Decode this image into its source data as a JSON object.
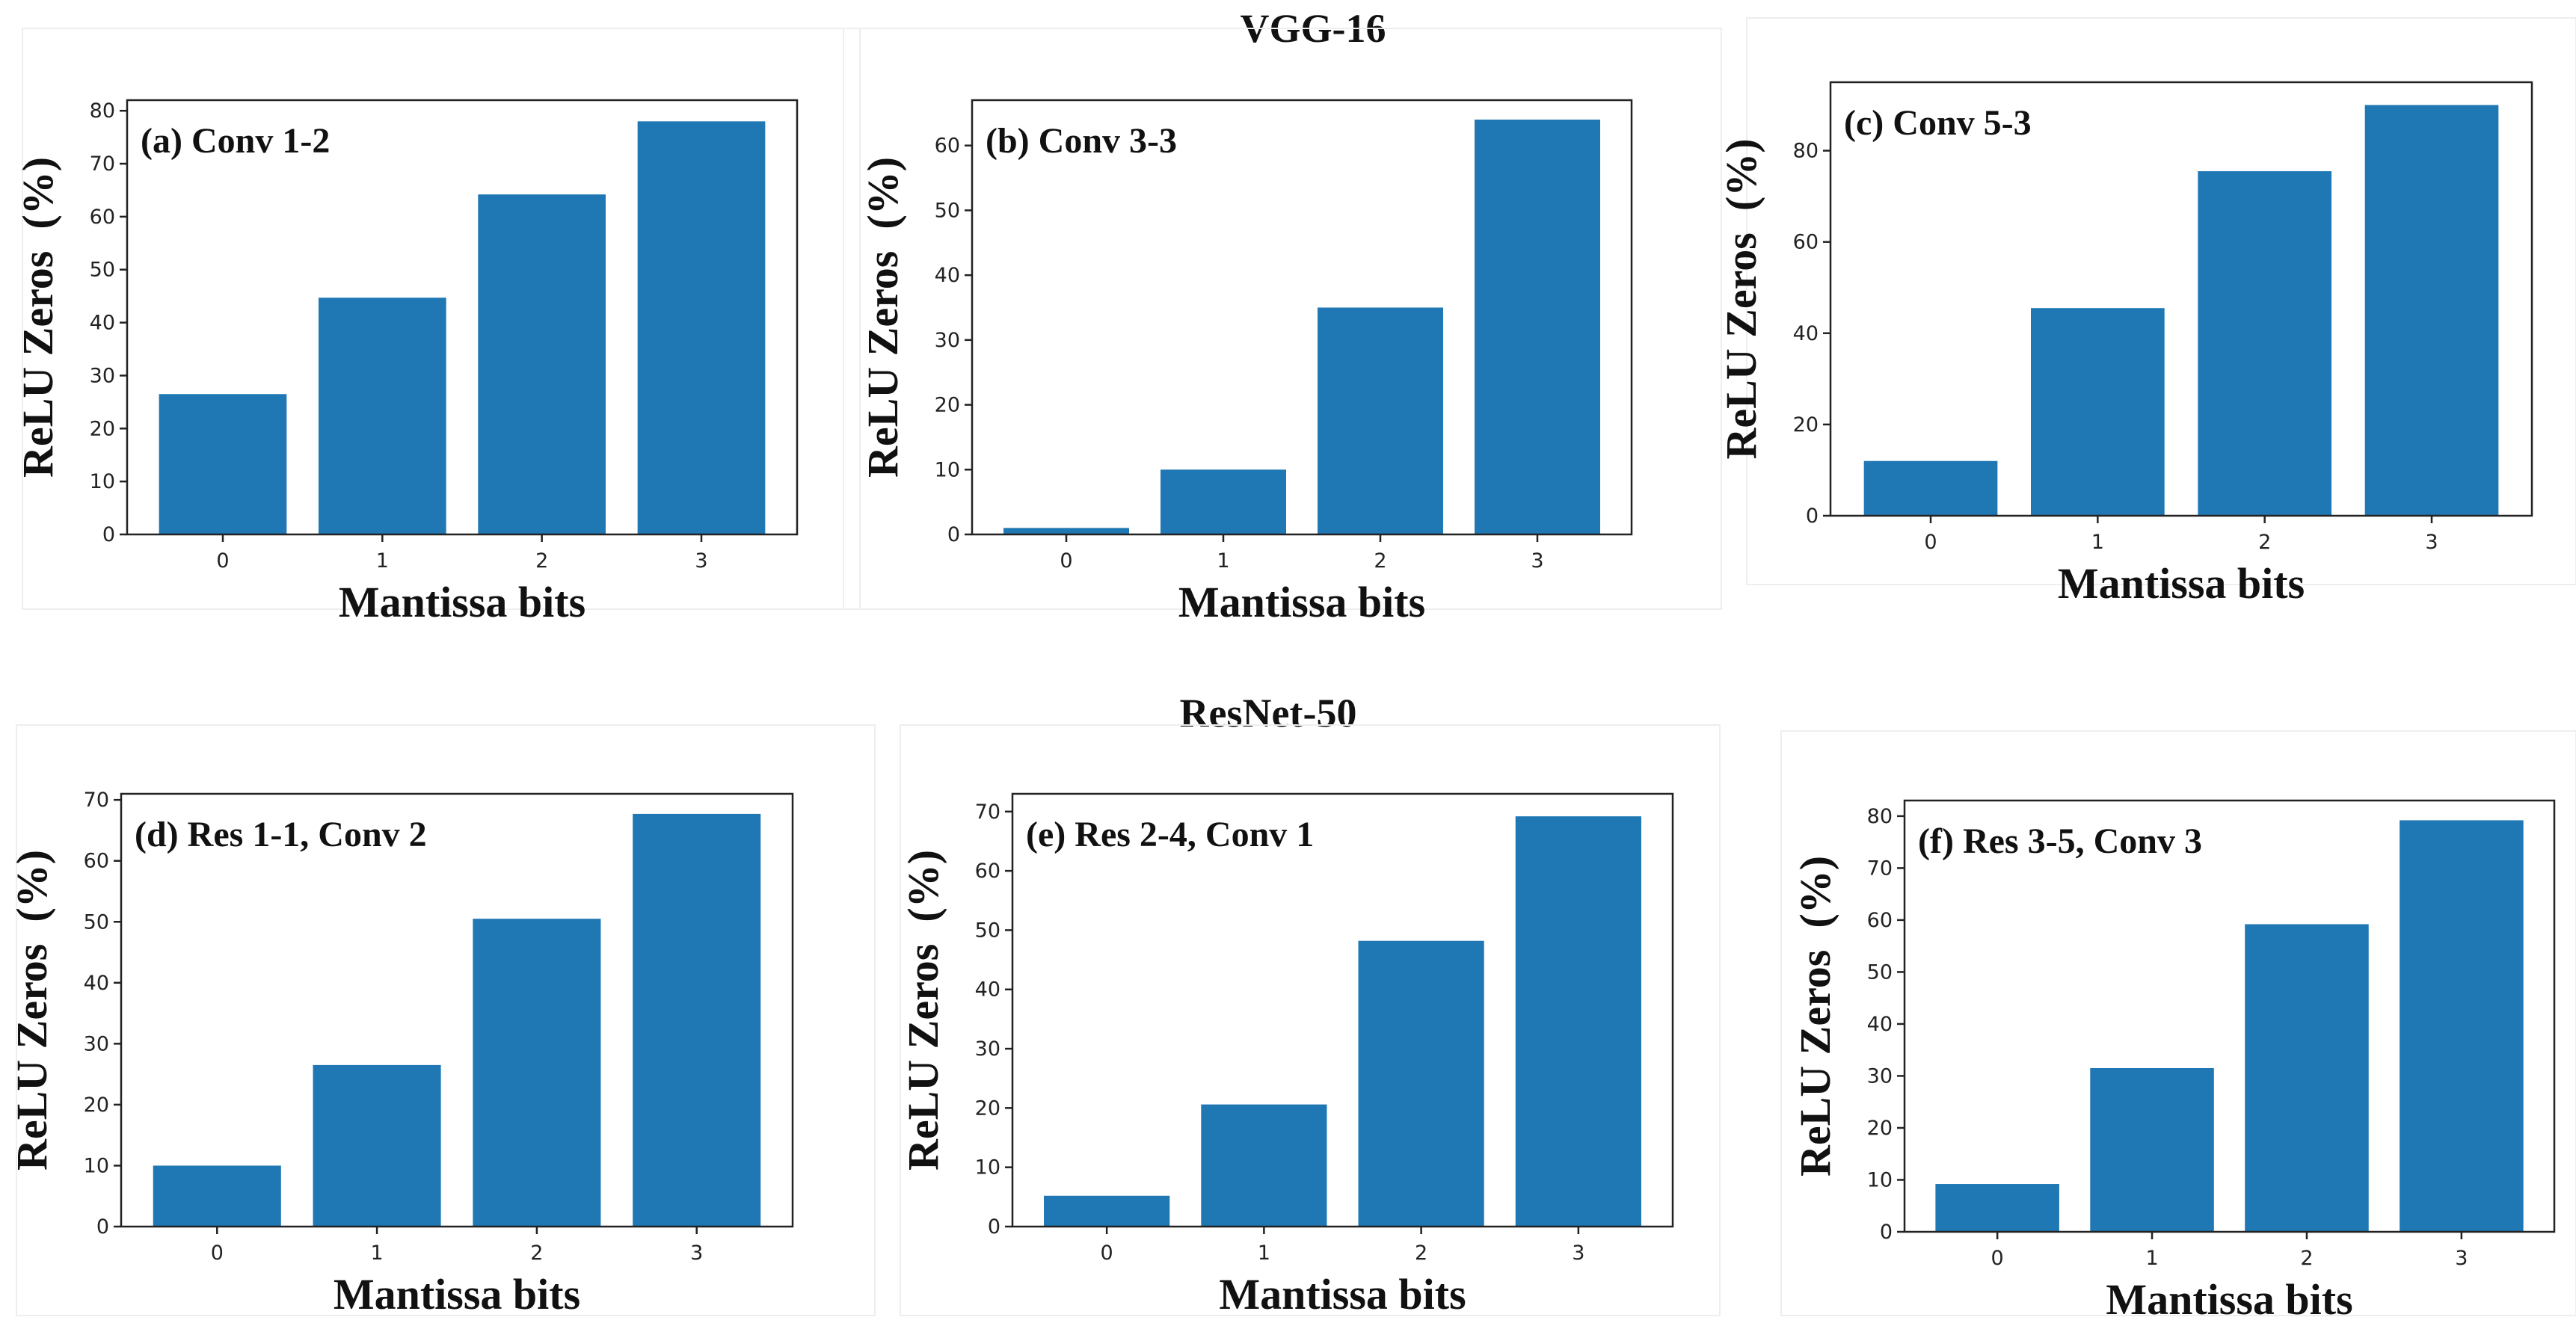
{
  "figure": {
    "group_titles": [
      "VGG-16",
      "ResNet-50"
    ]
  },
  "colors": {
    "bar": "#1f77b4",
    "axis": "#222222"
  },
  "chart_data": [
    {
      "type": "bar",
      "group": "VGG-16",
      "title": "(a) Conv 1-2",
      "xlabel": "Mantissa bits",
      "ylabel": "ReLU Zeros  (%)",
      "categories": [
        "0",
        "1",
        "2",
        "3"
      ],
      "values": [
        26.5,
        44.7,
        64.2,
        78.0
      ],
      "ylim": [
        0,
        82
      ],
      "yticks": [
        0,
        10,
        20,
        30,
        40,
        50,
        60,
        70,
        80
      ]
    },
    {
      "type": "bar",
      "group": "VGG-16",
      "title": "(b) Conv 3-3",
      "xlabel": "Mantissa bits",
      "ylabel": "ReLU Zeros  (%)",
      "categories": [
        "0",
        "1",
        "2",
        "3"
      ],
      "values": [
        1.0,
        10.0,
        35.0,
        64.0
      ],
      "ylim": [
        0,
        67
      ],
      "yticks": [
        0,
        10,
        20,
        30,
        40,
        50,
        60
      ]
    },
    {
      "type": "bar",
      "group": "VGG-16",
      "title": "(c) Conv 5-3",
      "xlabel": "Mantissa bits",
      "ylabel": "ReLU Zeros  (%)",
      "categories": [
        "0",
        "1",
        "2",
        "3"
      ],
      "values": [
        12.0,
        45.5,
        75.5,
        90.0
      ],
      "ylim": [
        0,
        95
      ],
      "yticks": [
        0,
        20,
        40,
        60,
        80
      ]
    },
    {
      "type": "bar",
      "group": "ResNet-50",
      "title": "(d) Res 1-1, Conv 2",
      "xlabel": "Mantissa bits",
      "ylabel": "ReLU Zeros  (%)",
      "categories": [
        "0",
        "1",
        "2",
        "3"
      ],
      "values": [
        10.0,
        26.5,
        50.5,
        67.7
      ],
      "ylim": [
        0,
        71
      ],
      "yticks": [
        0,
        10,
        20,
        30,
        40,
        50,
        60,
        70
      ]
    },
    {
      "type": "bar",
      "group": "ResNet-50",
      "title": "(e) Res 2-4, Conv 1",
      "xlabel": "Mantissa bits",
      "ylabel": "ReLU Zeros  (%)",
      "categories": [
        "0",
        "1",
        "2",
        "3"
      ],
      "values": [
        5.2,
        20.6,
        48.2,
        69.2
      ],
      "ylim": [
        0,
        73
      ],
      "yticks": [
        0,
        10,
        20,
        30,
        40,
        50,
        60,
        70
      ]
    },
    {
      "type": "bar",
      "group": "ResNet-50",
      "title": "(f) Res 3-5, Conv 3",
      "xlabel": "Mantissa bits",
      "ylabel": "ReLU Zeros  (%)",
      "categories": [
        "0",
        "1",
        "2",
        "3"
      ],
      "values": [
        9.2,
        31.5,
        59.2,
        79.2
      ],
      "ylim": [
        0,
        83
      ],
      "yticks": [
        0,
        10,
        20,
        30,
        40,
        50,
        60,
        70,
        80
      ]
    }
  ]
}
